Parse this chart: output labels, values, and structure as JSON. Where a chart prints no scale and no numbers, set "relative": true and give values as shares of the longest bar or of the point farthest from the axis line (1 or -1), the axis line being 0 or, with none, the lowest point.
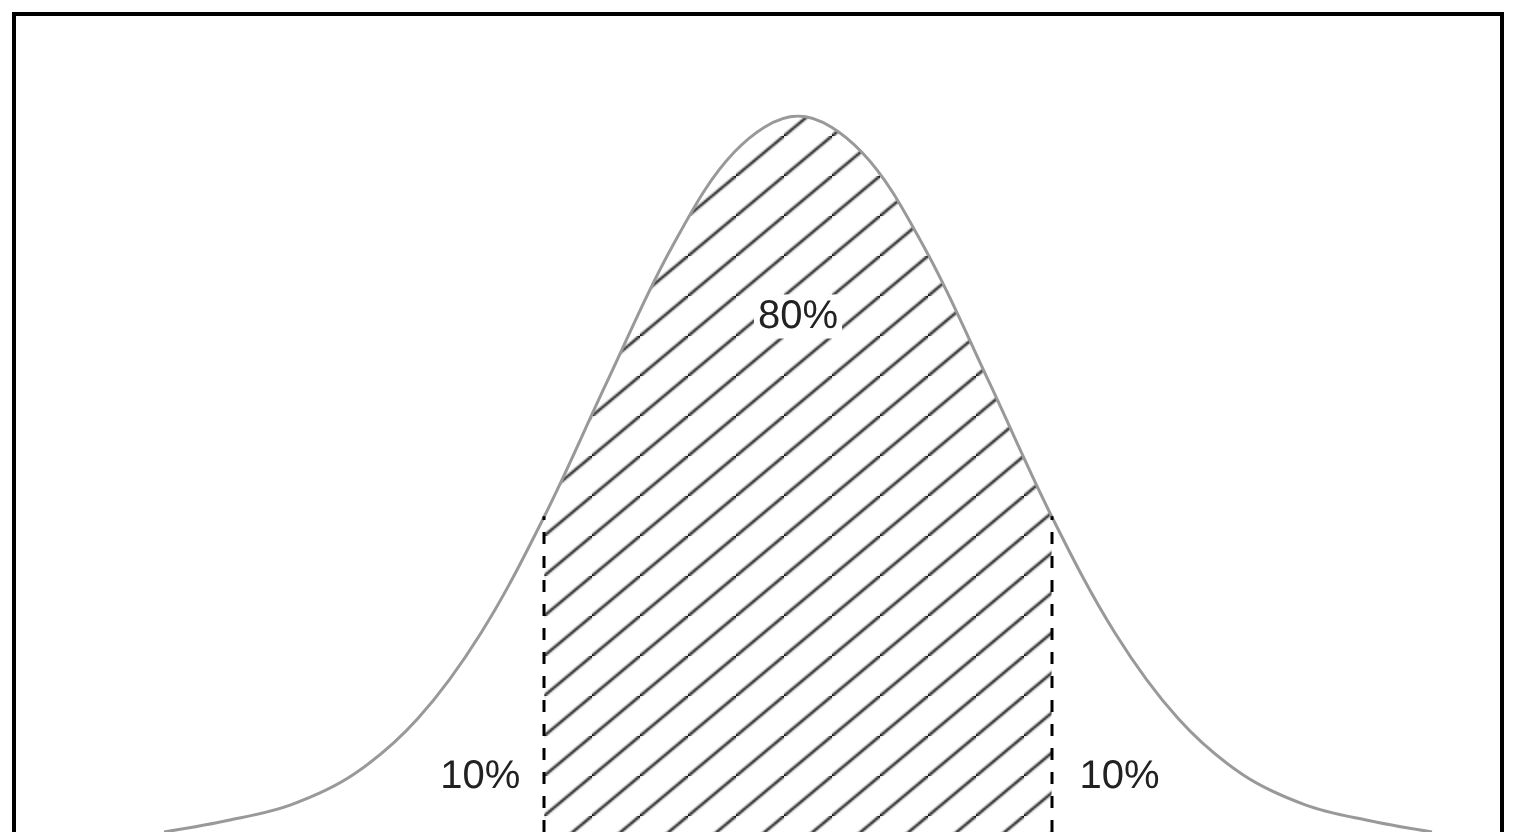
{
  "chart_data": {
    "type": "line",
    "relative": true,
    "categories": [
      null,
      null,
      null,
      null,
      null,
      null,
      null,
      null,
      null,
      null,
      null,
      null,
      null,
      null,
      null,
      null,
      null,
      null,
      null,
      null,
      null
    ],
    "series": [
      {
        "color": "#999999",
        "values": [
          0,
          0.016,
          0.038,
          0.081,
          0.158,
          0.278,
          0.441,
          0.631,
          0.815,
          0.95,
          1,
          0.95,
          0.815,
          0.631,
          0.441,
          0.278,
          0.158,
          0.081,
          0.038,
          0.016,
          0
        ]
      },
      {
        "type": "area",
        "name": "80%",
        "color": "#000000",
        "values": [
          null,
          null,
          null,
          null,
          null,
          null,
          0.441,
          0.631,
          0.815,
          0.95,
          1,
          0.95,
          0.815,
          0.631,
          0.441,
          null,
          null,
          null,
          null,
          null,
          null
        ]
      }
    ],
    "annotations": [
      "10%",
      "10%"
    ],
    "grid": false,
    "legend": false,
    "marker": "none"
  }
}
